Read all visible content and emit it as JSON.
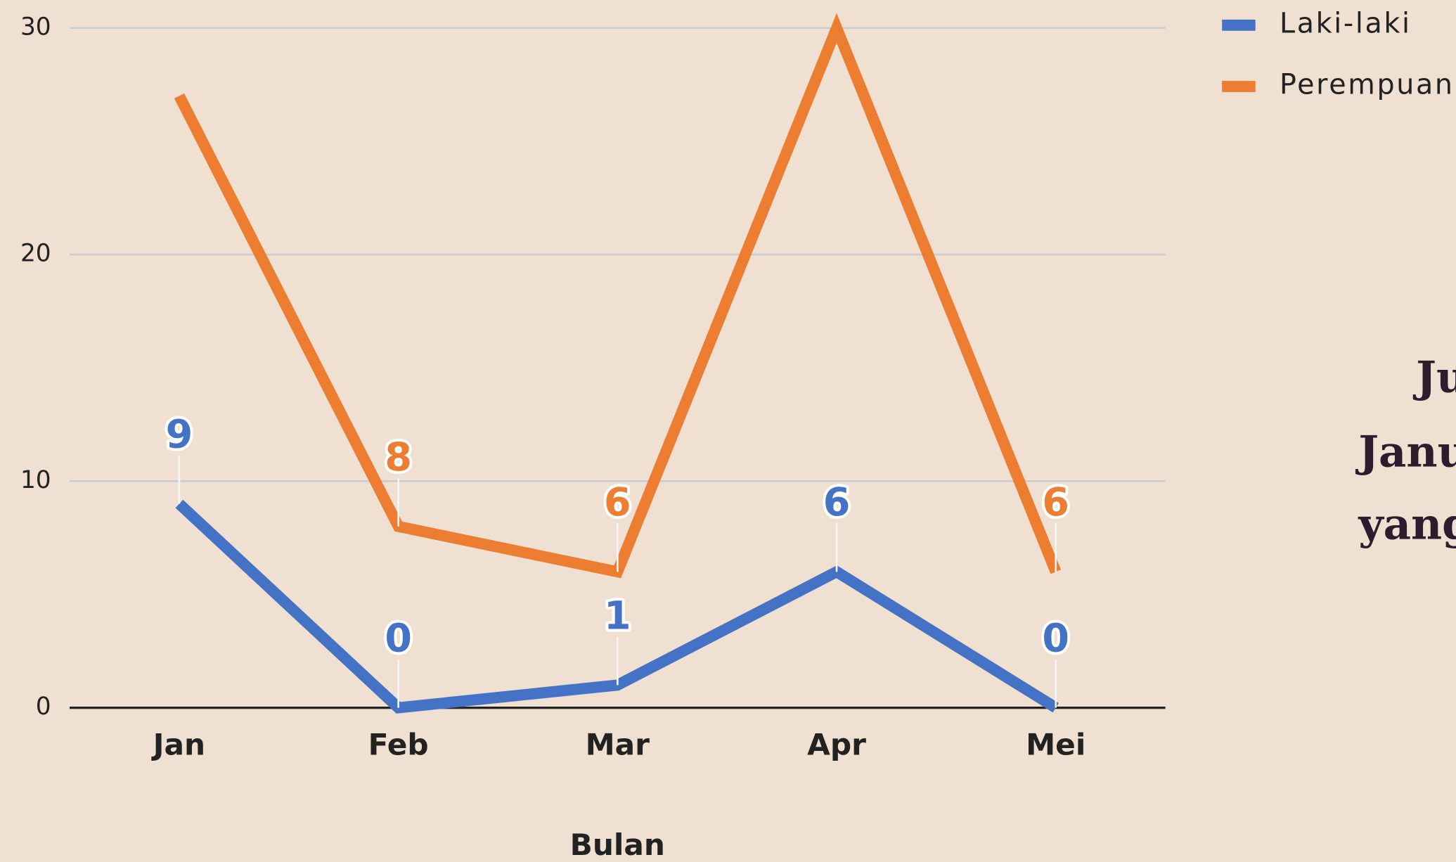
{
  "chart_data": {
    "type": "line",
    "x_label": "Bulan",
    "categories": [
      "Jan",
      "Feb",
      "Mar",
      "Apr",
      "Mei"
    ],
    "series": [
      {
        "name": "Laki-laki",
        "color": "#4472c4",
        "values": [
          9,
          0,
          1,
          6,
          0
        ],
        "show_labels": [
          true,
          true,
          true,
          true,
          true
        ]
      },
      {
        "name": "Perempuan",
        "color": "#ed7d31",
        "values": [
          27,
          8,
          6,
          30,
          6
        ],
        "show_labels": [
          false,
          true,
          true,
          false,
          true
        ]
      }
    ],
    "ylim": [
      0,
      30
    ],
    "yticks": [
      0,
      10,
      20,
      30
    ],
    "grid": true,
    "legend": "top-right",
    "annotations": [
      "Ju",
      "Janu",
      "yang"
    ]
  }
}
